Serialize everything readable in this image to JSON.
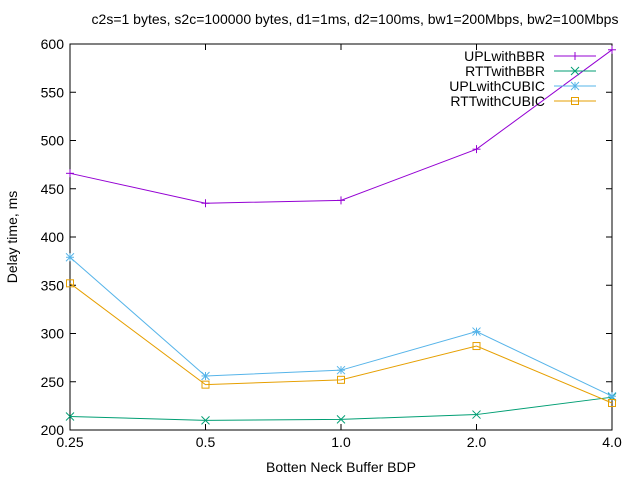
{
  "chart_data": {
    "type": "line",
    "title": "c2s=1 bytes, s2c=100000 bytes, d1=1ms, d2=100ms, bw1=200Mbps, bw2=100Mbps",
    "xlabel": "Botten Neck Buffer BDP",
    "ylabel": "Delay time, ms",
    "categories": [
      "0.25",
      "0.5",
      "1.0",
      "2.0",
      "4.0"
    ],
    "ylim": [
      200,
      600
    ],
    "yticks": [
      "200",
      "250",
      "300",
      "350",
      "400",
      "450",
      "500",
      "550",
      "600"
    ],
    "legend_position": "top-right",
    "grid": false,
    "series": [
      {
        "name": "UPLwithBBR",
        "marker": "plus",
        "color": "#9400d3",
        "values": [
          466,
          435,
          438,
          491,
          594
        ]
      },
      {
        "name": "RTTwithBBR",
        "marker": "cross",
        "color": "#009e73",
        "values": [
          214,
          210,
          211,
          216,
          234
        ]
      },
      {
        "name": "UPLwithCUBIC",
        "marker": "asterisk",
        "color": "#56b4e9",
        "values": [
          379,
          256,
          262,
          302,
          235
        ]
      },
      {
        "name": "RTTwithCUBIC",
        "marker": "square",
        "color": "#e69f00",
        "values": [
          352,
          247,
          252,
          287,
          228
        ]
      }
    ]
  }
}
